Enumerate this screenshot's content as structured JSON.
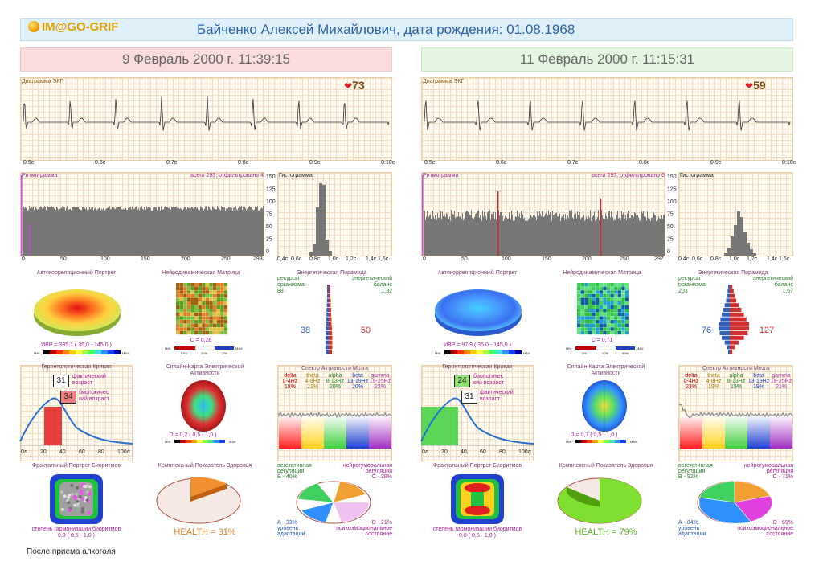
{
  "header": {
    "logo": "IM@GO-GRIF",
    "patient": "Байченко Алексей Михайлович, дата рождения: 01.08.1968"
  },
  "panels": [
    {
      "date": "9 Февраль 2000 г. 11:39:15",
      "ecg": {
        "title": "Диаграмма ЭКГ",
        "hr": "73",
        "ticks": [
          "0.5c",
          "0.6c",
          "0.7c",
          "0.8c",
          "0.9c",
          "0:10c"
        ]
      },
      "rhythm": {
        "title": "Ритмограмма",
        "info": "всего 293, отфильтровано 4",
        "ticks": [
          "0",
          "50",
          "100",
          "150",
          "200",
          "250",
          "293"
        ]
      },
      "histo": {
        "title": "Гистограмма",
        "yticks": [
          "150",
          "125",
          "100",
          "75",
          "50",
          "25",
          "0"
        ],
        "xticks": [
          "0,4c",
          "0,6c",
          "0,8c",
          "1,0c",
          "1,2c",
          "1,4c",
          "1,6c"
        ]
      },
      "autocorr": {
        "title": "Автокорреляционный Портрет",
        "ivr": "ИВР = 335,1 ( 35,0 - 145,0 )",
        "min": "MIN",
        "max": "MAX"
      },
      "neuro": {
        "title": "Нейродинамическая Матрица",
        "c": "С = 0,28",
        "p1": "53%",
        "p2": "30%",
        "p3": "17%",
        "min": "MIN",
        "max": "MAX"
      },
      "pyramid": {
        "title": "Энергетическая Пирамида",
        "left_l1": "ресурсы",
        "left_l2": "организма",
        "left_val": "88",
        "right_l1": "энергетический",
        "right_l2": "баланс",
        "right_val": "1,32",
        "num_left": "38",
        "num_right": "50"
      },
      "geronto": {
        "title": "Геронтологическая Кривая",
        "box1": "31",
        "lab1a": "фактический",
        "lab1b": "возраст",
        "box2": "34",
        "lab2a": "биологичес",
        "lab2b": "кий возраст",
        "xt": [
          "0л",
          "20",
          "40",
          "60",
          "80",
          "100л"
        ]
      },
      "brainmap": {
        "title": "Сплайн-Карта Электрической",
        "title2": "Активности",
        "d": "D = 0,2 ( 0,5 - 1,0 )",
        "min": "MIN",
        "max": "MAX"
      },
      "spectrum": {
        "title": "Спектр Активности Мозга",
        "bands": [
          {
            "n": "delta",
            "r": "0-4Hz",
            "v": "18%"
          },
          {
            "n": "theta",
            "r": "4-8Hz",
            "v": "21%"
          },
          {
            "n": "alpha",
            "r": "8-13Hz",
            "v": "20%"
          },
          {
            "n": "beta",
            "r": "13-19Hz",
            "v": "20%"
          },
          {
            "n": "gamma",
            "r": "19-25Hz",
            "v": "22%"
          }
        ]
      },
      "fractal": {
        "title": "Фрактальный Портрет Биоритмов",
        "cap1": "степень гармонизации биоритмов",
        "cap2": "0,3 ( 0,5 - 1,0 )"
      },
      "health": {
        "title": "Комплексный Показатель Здоровья",
        "value": "HEALTH = 31%"
      },
      "regulation": {
        "veg1": "вегетативная",
        "veg2": "регуляция",
        "veg3": "В - 40%",
        "neu1": "нейрогуморальная",
        "neu2": "регуляция",
        "neu3": "С - 28%",
        "ad1": "А - 33%",
        "ad2": "уровень",
        "ad3": "адаптации",
        "ps1": "D - 21%",
        "ps2": "психоэмоциональное",
        "ps3": "состояние"
      },
      "note": "После приема алкоголя"
    },
    {
      "date": "11 Февраль 2000 г. 11:15:31",
      "ecg": {
        "title": "Диаграмма ЭКГ",
        "hr": "59",
        "ticks": [
          "0.5c",
          "0.6c",
          "0.7c",
          "0.8c",
          "0.9c",
          "0:10c"
        ]
      },
      "rhythm": {
        "title": "Ритмограмма",
        "info": "всего 297, отфильтровано 6",
        "ticks": [
          "0",
          "50",
          "100",
          "150",
          "200",
          "250",
          "297"
        ]
      },
      "histo": {
        "title": "Гистограмма",
        "yticks": [
          "150",
          "125",
          "100",
          "75",
          "50",
          "25",
          "0"
        ],
        "xticks": [
          "0,4c",
          "0,6c",
          "0,8c",
          "1,0c",
          "1,2c",
          "1,4c",
          "1,6c"
        ]
      },
      "autocorr": {
        "title": "Автокорреляционный Портрет",
        "ivr": "ИВР = 97,9 ( 35,0 - 145,0 )",
        "min": "MIN",
        "max": "MAX"
      },
      "neuro": {
        "title": "Нейродинамическая Матрица",
        "c": "С = 0,71",
        "p1": "0%",
        "p2": "40%",
        "p3": "60%",
        "min": "MIN",
        "max": "MAX"
      },
      "pyramid": {
        "title": "Энергетическая Пирамида",
        "left_l1": "ресурсы",
        "left_l2": "организма",
        "left_val": "203",
        "right_l1": "энергетический",
        "right_l2": "баланс",
        "right_val": "1,67",
        "num_left": "76",
        "num_right": "127"
      },
      "geronto": {
        "title": "Геронтологическая Кривая",
        "box1": "24",
        "lab1a": "биологичес",
        "lab1b": "кий возраст",
        "box2": "31",
        "lab2a": "фактический",
        "lab2b": "возраст",
        "xt": [
          "0л",
          "20",
          "40",
          "60",
          "80",
          "100л"
        ]
      },
      "brainmap": {
        "title": "Сплайн-Карта Электрической",
        "title2": "Активности",
        "d": "D = 0,7 ( 0,5 - 1,0 )",
        "min": "MIN",
        "max": "MAX"
      },
      "spectrum": {
        "title": "Спектр Активности Мозга",
        "bands": [
          {
            "n": "delta",
            "r": "0-4Hz",
            "v": "23%"
          },
          {
            "n": "theta",
            "r": "4-8Hz",
            "v": "19%"
          },
          {
            "n": "alpha",
            "r": "8-13Hz",
            "v": "19%"
          },
          {
            "n": "beta",
            "r": "13-19Hz",
            "v": "19%"
          },
          {
            "n": "gamma",
            "r": "19-25Hz",
            "v": "21%"
          }
        ]
      },
      "fractal": {
        "title": "Фрактальный Портрет Биоритмов",
        "cap1": "степень гармонизации биоритмов",
        "cap2": "0,8 ( 0,5 - 1,0 )"
      },
      "health": {
        "title": "Комплексный Показатель Здоровья",
        "value": "HEALTH = 79%"
      },
      "regulation": {
        "veg1": "вегетативная",
        "veg2": "регуляция",
        "veg3": "В - 92%",
        "neu1": "нейрогуморальная",
        "neu2": "регуляция",
        "neu3": "С - 71%",
        "ad1": "А - 84%",
        "ad2": "уровень",
        "ad3": "адаптации",
        "ps1": "D - 69%",
        "ps2": "психоэмоциональное",
        "ps3": "состояние"
      }
    }
  ]
}
